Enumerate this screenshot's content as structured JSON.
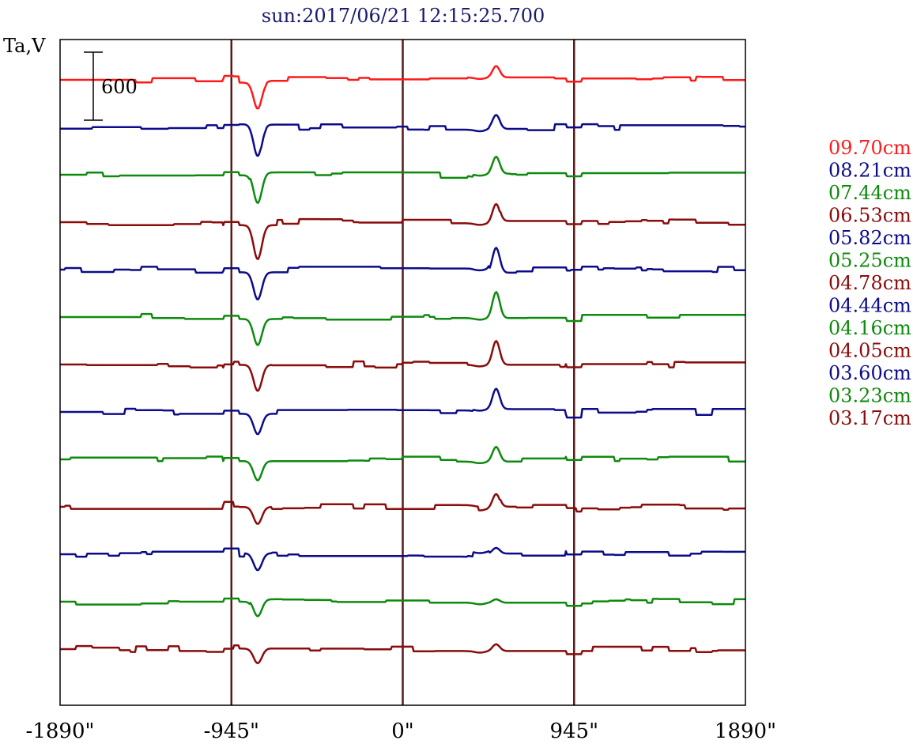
{
  "chart_data": {
    "type": "line",
    "title": "sun:2017/06/21 12:15:25.700",
    "ylabel": "Ta,V",
    "scale_bar_label": "600",
    "xlim": [
      -1890,
      1890
    ],
    "x_ticks": [
      {
        "value": -1890,
        "label": "-1890\""
      },
      {
        "value": -945,
        "label": "-945\""
      },
      {
        "value": 0,
        "label": "0\""
      },
      {
        "value": 945,
        "label": "945\""
      },
      {
        "value": 1890,
        "label": "1890\""
      }
    ],
    "vertical_lines": [
      -945,
      0,
      945
    ],
    "colors": {
      "red": "#ff1a1a",
      "blue": "#0c0c8a",
      "green": "#0e8a0e",
      "maroon": "#8a0c0c",
      "frame": "#000000",
      "divider": "#5a1a1a"
    },
    "series": [
      {
        "name": "09.70cm",
        "color": "#ff1a1a",
        "dip": 230,
        "peak": 100
      },
      {
        "name": "08.21cm",
        "color": "#0c0c8a",
        "dip": 280,
        "peak": 120
      },
      {
        "name": "07.44cm",
        "color": "#0e8a0e",
        "dip": 270,
        "peak": 150
      },
      {
        "name": "06.53cm",
        "color": "#8a0c0c",
        "dip": 300,
        "peak": 170
      },
      {
        "name": "05.82cm",
        "color": "#0c0c8a",
        "dip": 240,
        "peak": 220
      },
      {
        "name": "05.25cm",
        "color": "#0e8a0e",
        "dip": 230,
        "peak": 230
      },
      {
        "name": "04.78cm",
        "color": "#8a0c0c",
        "dip": 230,
        "peak": 210
      },
      {
        "name": "04.44cm",
        "color": "#0c0c8a",
        "dip": 180,
        "peak": 180
      },
      {
        "name": "04.16cm",
        "color": "#0e8a0e",
        "dip": 170,
        "peak": 130
      },
      {
        "name": "04.05cm",
        "color": "#8a0c0c",
        "dip": 150,
        "peak": 130
      },
      {
        "name": "03.60cm",
        "color": "#0c0c8a",
        "dip": 150,
        "peak": 50
      },
      {
        "name": "03.23cm",
        "color": "#0e8a0e",
        "dip": 150,
        "peak": 30
      },
      {
        "name": "03.17cm",
        "color": "#8a0c0c",
        "dip": 130,
        "peak": 60
      }
    ],
    "grid": false,
    "legend_placement": "right"
  }
}
